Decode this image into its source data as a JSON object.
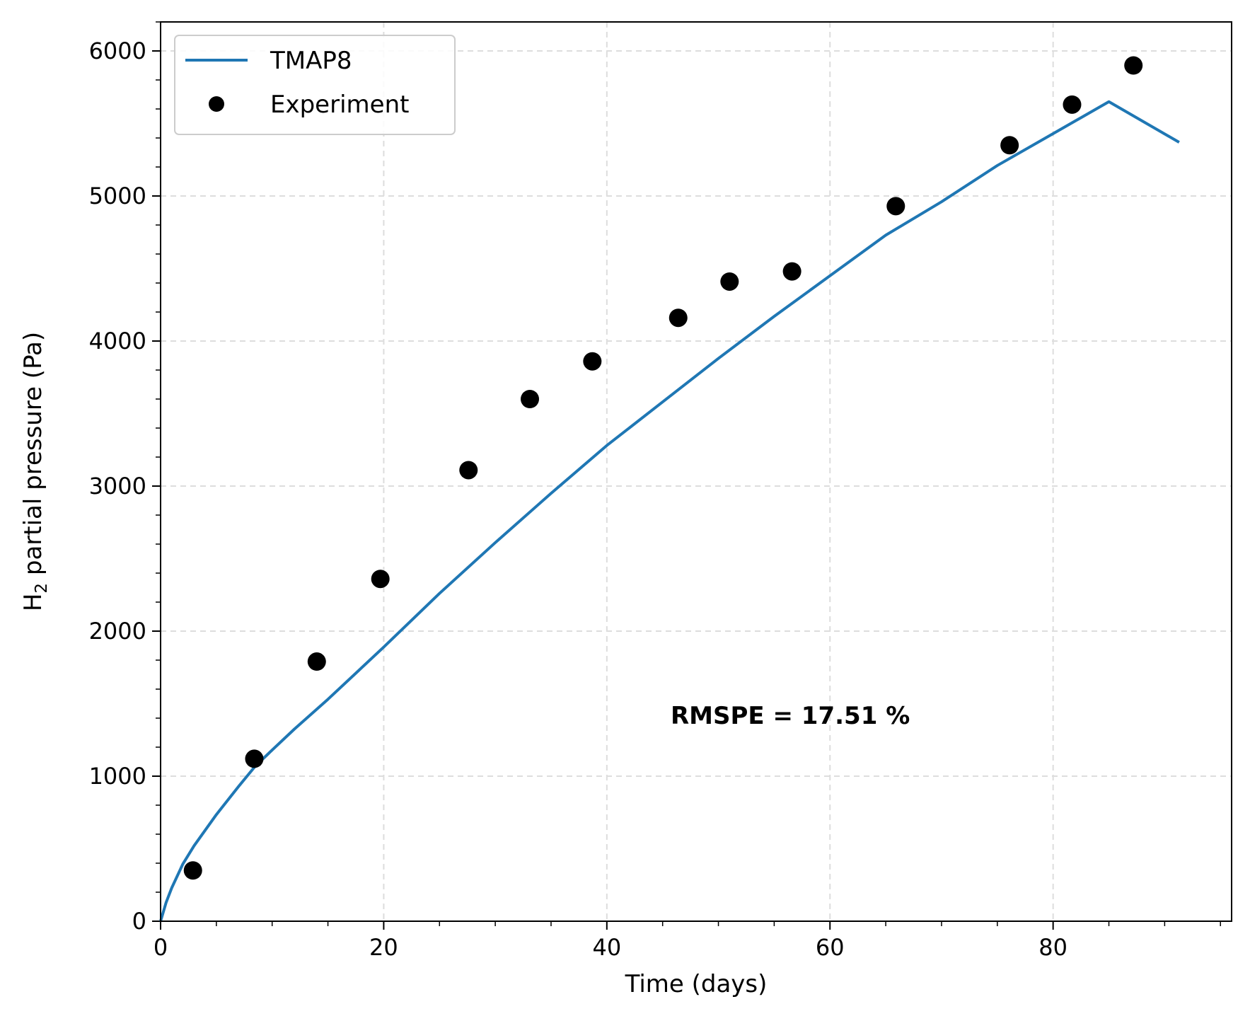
{
  "chart_data": {
    "type": "line",
    "xlabel": "Time (days)",
    "ylabel_main": "H",
    "ylabel_sub": "2",
    "ylabel_rest": " partial pressure (Pa)",
    "xlim": [
      0,
      96
    ],
    "ylim": [
      0,
      6200
    ],
    "xticks": [
      0,
      20,
      40,
      60,
      80
    ],
    "yticks": [
      0,
      1000,
      2000,
      3000,
      4000,
      5000,
      6000
    ],
    "x_minor_step": 5,
    "y_minor_step": 200,
    "grid": true,
    "legend_position": "top-left",
    "annotation": "RMSPE = 17.51 %",
    "series": [
      {
        "name": "TMAP8",
        "kind": "line",
        "color": "#1f77b4",
        "x": [
          0,
          0.5,
          1,
          2,
          3,
          5,
          7,
          8.5,
          10,
          12,
          15,
          20,
          25,
          30,
          35,
          40,
          45,
          50,
          55,
          60,
          65,
          70,
          75,
          80,
          85,
          91.3
        ],
        "y": [
          0,
          130,
          230,
          395,
          520,
          735,
          930,
          1070,
          1180,
          1325,
          1530,
          1890,
          2260,
          2610,
          2950,
          3280,
          3580,
          3880,
          4170,
          4450,
          4730,
          4960,
          5210,
          5430,
          5650,
          5370
        ]
      },
      {
        "name": "Experiment",
        "kind": "scatter",
        "color": "#000000",
        "x": [
          2.9,
          8.4,
          14.0,
          19.7,
          27.6,
          33.1,
          38.7,
          46.4,
          51.0,
          56.6,
          65.9,
          76.1,
          81.7,
          87.2
        ],
        "y": [
          350,
          1120,
          1790,
          2360,
          3110,
          3600,
          3860,
          4160,
          4410,
          4480,
          4930,
          5350,
          5630,
          5900
        ]
      }
    ]
  }
}
